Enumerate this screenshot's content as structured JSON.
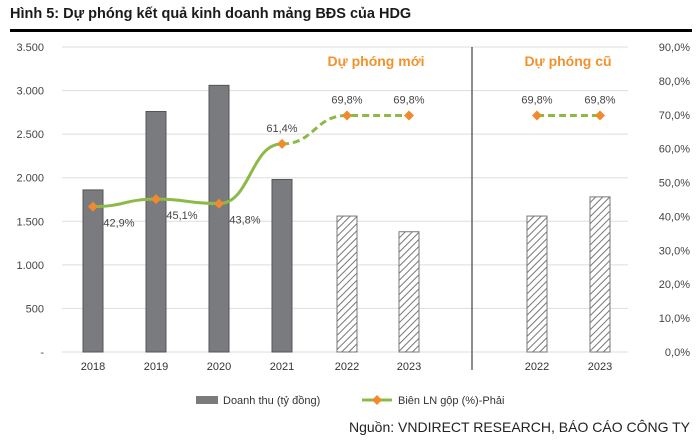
{
  "title": "Hình 5: Dự phóng kết quả kinh doanh mảng BĐS của HDG",
  "source": "Nguồn: VNDIRECT RESEARCH, BÁO CÁO CÔNG TY",
  "chart_data": {
    "type": "bar+line",
    "categories": [
      "2018",
      "2019",
      "2020",
      "2021",
      "2022",
      "2023",
      "2022",
      "2023"
    ],
    "series": [
      {
        "name": "Doanh thu (tỷ đồng)",
        "axis": "left",
        "values": [
          1860,
          2760,
          3060,
          1980,
          1560,
          1380,
          1560,
          1780
        ],
        "forecast": [
          false,
          false,
          false,
          false,
          true,
          true,
          true,
          true
        ],
        "color": "#7a7b7e"
      },
      {
        "name": "Biên LN gộp (%)-Phải",
        "axis": "right",
        "values": [
          42.9,
          45.1,
          43.8,
          61.4,
          69.8,
          69.8,
          69.8,
          69.8
        ],
        "labels": [
          "42,9%",
          "45,1%",
          "43,8%",
          "61,4%",
          "69,8%",
          "69,8%",
          "69,8%",
          "69,8%"
        ],
        "color": "#8dba45",
        "marker_color": "#f08a2c"
      }
    ],
    "left_axis": {
      "ylim": [
        0,
        3500
      ],
      "ticks": [
        "-",
        "500",
        "1.000",
        "1.500",
        "2.000",
        "2.500",
        "3.000",
        "3.500"
      ]
    },
    "right_axis": {
      "ylim": [
        0,
        90
      ],
      "ticks": [
        "0,0%",
        "10,0%",
        "20,0%",
        "30,0%",
        "40,0%",
        "50,0%",
        "60,0%",
        "70,0%",
        "80,0%",
        "90,0%"
      ]
    },
    "annotations": [
      "Dự phóng mới",
      "Dự phóng cũ"
    ],
    "annotation_color": "#f0922e",
    "legend": "bottom",
    "grid": true
  }
}
